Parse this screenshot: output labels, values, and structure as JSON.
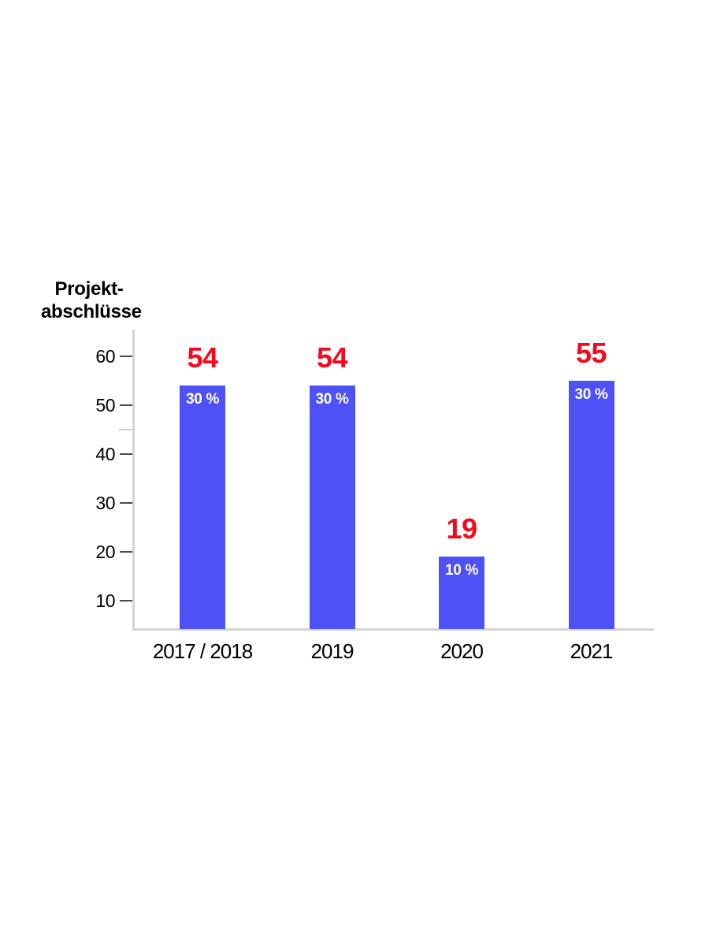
{
  "page": {
    "background_color": "#ffffff"
  },
  "chart_data": {
    "type": "bar",
    "title": "Projekt-abschlüsse",
    "title_lines": [
      "Projekt-",
      "abschlüsse"
    ],
    "categories": [
      "2017 / 2018",
      "2019",
      "2020",
      "2021"
    ],
    "values": [
      54,
      54,
      19,
      55
    ],
    "value_labels": [
      "54",
      "54",
      "19",
      "55"
    ],
    "percent_labels": [
      "30 %",
      "30 %",
      "10 %",
      "30 %"
    ],
    "y_ticks": [
      60,
      50,
      40,
      30,
      20,
      10
    ],
    "y_minor_ticks": [
      45
    ],
    "y_axis_range_shown": [
      10,
      60
    ],
    "grid": false,
    "legend": "none",
    "colors": {
      "bar": "#4e51f5",
      "value_label": "#f4091d",
      "percent_label": "#ffffff",
      "axis_line": "#d4d4d4",
      "major_tick": "#4a4a4a",
      "minor_tick": "#cfcfcf",
      "text": "#000000"
    }
  }
}
